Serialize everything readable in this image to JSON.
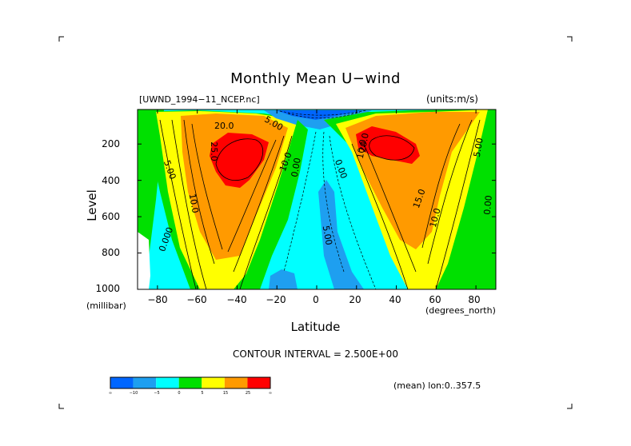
{
  "chart_data": {
    "type": "contour",
    "title": "Monthly Mean U−wind",
    "dataset_label": "[UWND_1994−11_NCEP.nc]",
    "units_label": "(units:m/s)",
    "xlabel": "Latitude",
    "xunit": "(degrees_north)",
    "ylabel": "Level",
    "yunit": "(millibar)",
    "x_ticks": [
      "−80",
      "−60",
      "−40",
      "−20",
      "0",
      "20",
      "40",
      "60",
      "80"
    ],
    "y_ticks": [
      "200",
      "400",
      "600",
      "800",
      "1000"
    ],
    "xlim": [
      -90,
      90
    ],
    "ylim": [
      1000,
      10
    ],
    "contour_interval_text": "CONTOUR INTERVAL = 2.500E+00",
    "subtitle_note": "(mean) lon:0..357.5",
    "colorbar": {
      "labels": [
        "∞",
        "−10",
        "−5",
        "0",
        "5",
        "15",
        "25",
        "∞"
      ],
      "colors": [
        "#0066ff",
        "#1e9ff0",
        "#00ffff",
        "#00e000",
        "#ffff00",
        "#ff9a00",
        "#ff0000"
      ]
    },
    "contour_labels": [
      "20.0",
      "10.0",
      "5.00",
      "10.0",
      "0.00",
      "10.0",
      "0.00",
      "5.00",
      "25.0",
      "0.000",
      "5.00",
      "20.0",
      "15.0",
      "10.0",
      "5.00",
      "0.00"
    ],
    "jets": [
      {
        "name": "southern_jet",
        "lat_center": -45,
        "level_center": 250,
        "max": 30
      },
      {
        "name": "northern_jet",
        "lat_center": 40,
        "level_center": 220,
        "max": 30
      }
    ]
  }
}
